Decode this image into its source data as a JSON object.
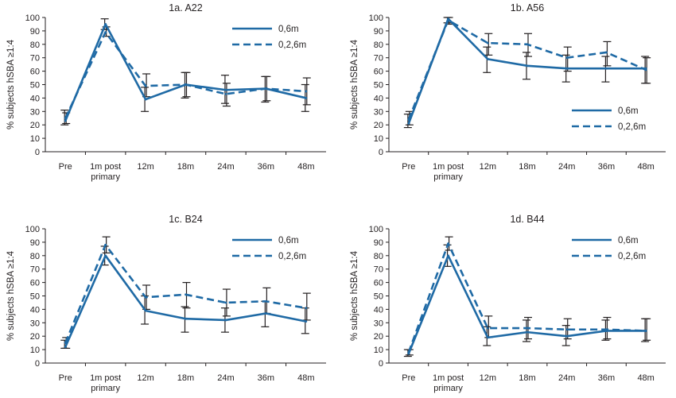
{
  "chart_data": [
    {
      "type": "line",
      "title": "1a. A22",
      "ylabel": "% subjects hSBA ≥1:4",
      "xlabel": "",
      "ylim": [
        0,
        100
      ],
      "yticks": [
        0,
        10,
        20,
        30,
        40,
        50,
        60,
        70,
        80,
        90,
        100
      ],
      "categories": [
        "Pre",
        "1m post|primary",
        "12m",
        "18m",
        "24m",
        "36m",
        "48m"
      ],
      "legend_position": "top-right",
      "series": [
        {
          "name": "0,6m",
          "style": "solid",
          "color": "#1f6aa5",
          "values": [
            23,
            95,
            39,
            50,
            46,
            47,
            40
          ],
          "err_low": [
            20,
            91,
            30,
            40,
            36,
            37,
            30
          ],
          "err_high": [
            31,
            99,
            48,
            59,
            57,
            56,
            50
          ]
        },
        {
          "name": "0,2,6m",
          "style": "dashed",
          "color": "#1f6aa5",
          "values": [
            25,
            89,
            49,
            50,
            43,
            47,
            45
          ],
          "err_low": [
            21,
            86,
            41,
            41,
            34,
            38,
            35
          ],
          "err_high": [
            29,
            93,
            58,
            59,
            51,
            56,
            55
          ]
        }
      ]
    },
    {
      "type": "line",
      "title": "1b. A56",
      "ylabel": "% subjects hSBA ≥1:4",
      "xlabel": "",
      "ylim": [
        0,
        100
      ],
      "yticks": [
        0,
        10,
        20,
        30,
        40,
        50,
        60,
        70,
        80,
        90,
        100
      ],
      "categories": [
        "Pre",
        "1m post|primary",
        "12m",
        "18m",
        "24m",
        "36m",
        "48m"
      ],
      "legend_position": "bottom-right",
      "series": [
        {
          "name": "0,6m",
          "style": "solid",
          "color": "#1f6aa5",
          "values": [
            21,
            99,
            69,
            64,
            62,
            62,
            62
          ],
          "err_low": [
            18,
            96,
            59,
            54,
            52,
            52,
            51
          ],
          "err_high": [
            28,
            100,
            78,
            74,
            72,
            71,
            71
          ]
        },
        {
          "name": "0,2,6m",
          "style": "dashed",
          "color": "#1f6aa5",
          "values": [
            24,
            98,
            81,
            80,
            70,
            74,
            61
          ],
          "err_low": [
            20,
            95,
            72,
            71,
            60,
            64,
            51
          ],
          "err_high": [
            30,
            100,
            88,
            88,
            78,
            82,
            70
          ]
        }
      ]
    },
    {
      "type": "line",
      "title": "1c. B24",
      "ylabel": "% subjects hSBA ≥1:4",
      "xlabel": "",
      "ylim": [
        0,
        100
      ],
      "yticks": [
        0,
        10,
        20,
        30,
        40,
        50,
        60,
        70,
        80,
        90,
        100
      ],
      "categories": [
        "Pre",
        "1m post|primary",
        "12m",
        "18m",
        "24m",
        "36m",
        "48m"
      ],
      "legend_position": "top-right",
      "series": [
        {
          "name": "0,6m",
          "style": "solid",
          "color": "#1f6aa5",
          "values": [
            12,
            80,
            39,
            33,
            32,
            37,
            31
          ],
          "err_low": [
            11,
            73,
            29,
            23,
            23,
            27,
            22
          ],
          "err_high": [
            17,
            87,
            50,
            42,
            41,
            46,
            41
          ]
        },
        {
          "name": "0,2,6m",
          "style": "dashed",
          "color": "#1f6aa5",
          "values": [
            15,
            88,
            49,
            51,
            45,
            46,
            41
          ],
          "err_low": [
            11,
            82,
            40,
            41,
            35,
            37,
            32
          ],
          "err_high": [
            19,
            94,
            58,
            60,
            55,
            56,
            52
          ]
        }
      ]
    },
    {
      "type": "line",
      "title": "1d. B44",
      "ylabel": "% subjects hSBA ≥1:4",
      "xlabel": "",
      "ylim": [
        0,
        100
      ],
      "yticks": [
        0,
        10,
        20,
        30,
        40,
        50,
        60,
        70,
        80,
        90,
        100
      ],
      "categories": [
        "Pre",
        "1m post|primary",
        "12m",
        "18m",
        "24m",
        "36m",
        "48m"
      ],
      "legend_position": "top-right",
      "series": [
        {
          "name": "0,6m",
          "style": "solid",
          "color": "#1f6aa5",
          "values": [
            7,
            80,
            19,
            23,
            20,
            24,
            24
          ],
          "err_low": [
            5,
            72,
            13,
            16,
            13,
            17,
            16
          ],
          "err_high": [
            10,
            88,
            27,
            32,
            28,
            32,
            33
          ]
        },
        {
          "name": "0,2,6m",
          "style": "dashed",
          "color": "#1f6aa5",
          "values": [
            8,
            89,
            26,
            26,
            25,
            25,
            24
          ],
          "err_low": [
            6,
            84,
            19,
            18,
            18,
            18,
            17
          ],
          "err_high": [
            10,
            94,
            35,
            34,
            33,
            34,
            33
          ]
        }
      ]
    }
  ]
}
